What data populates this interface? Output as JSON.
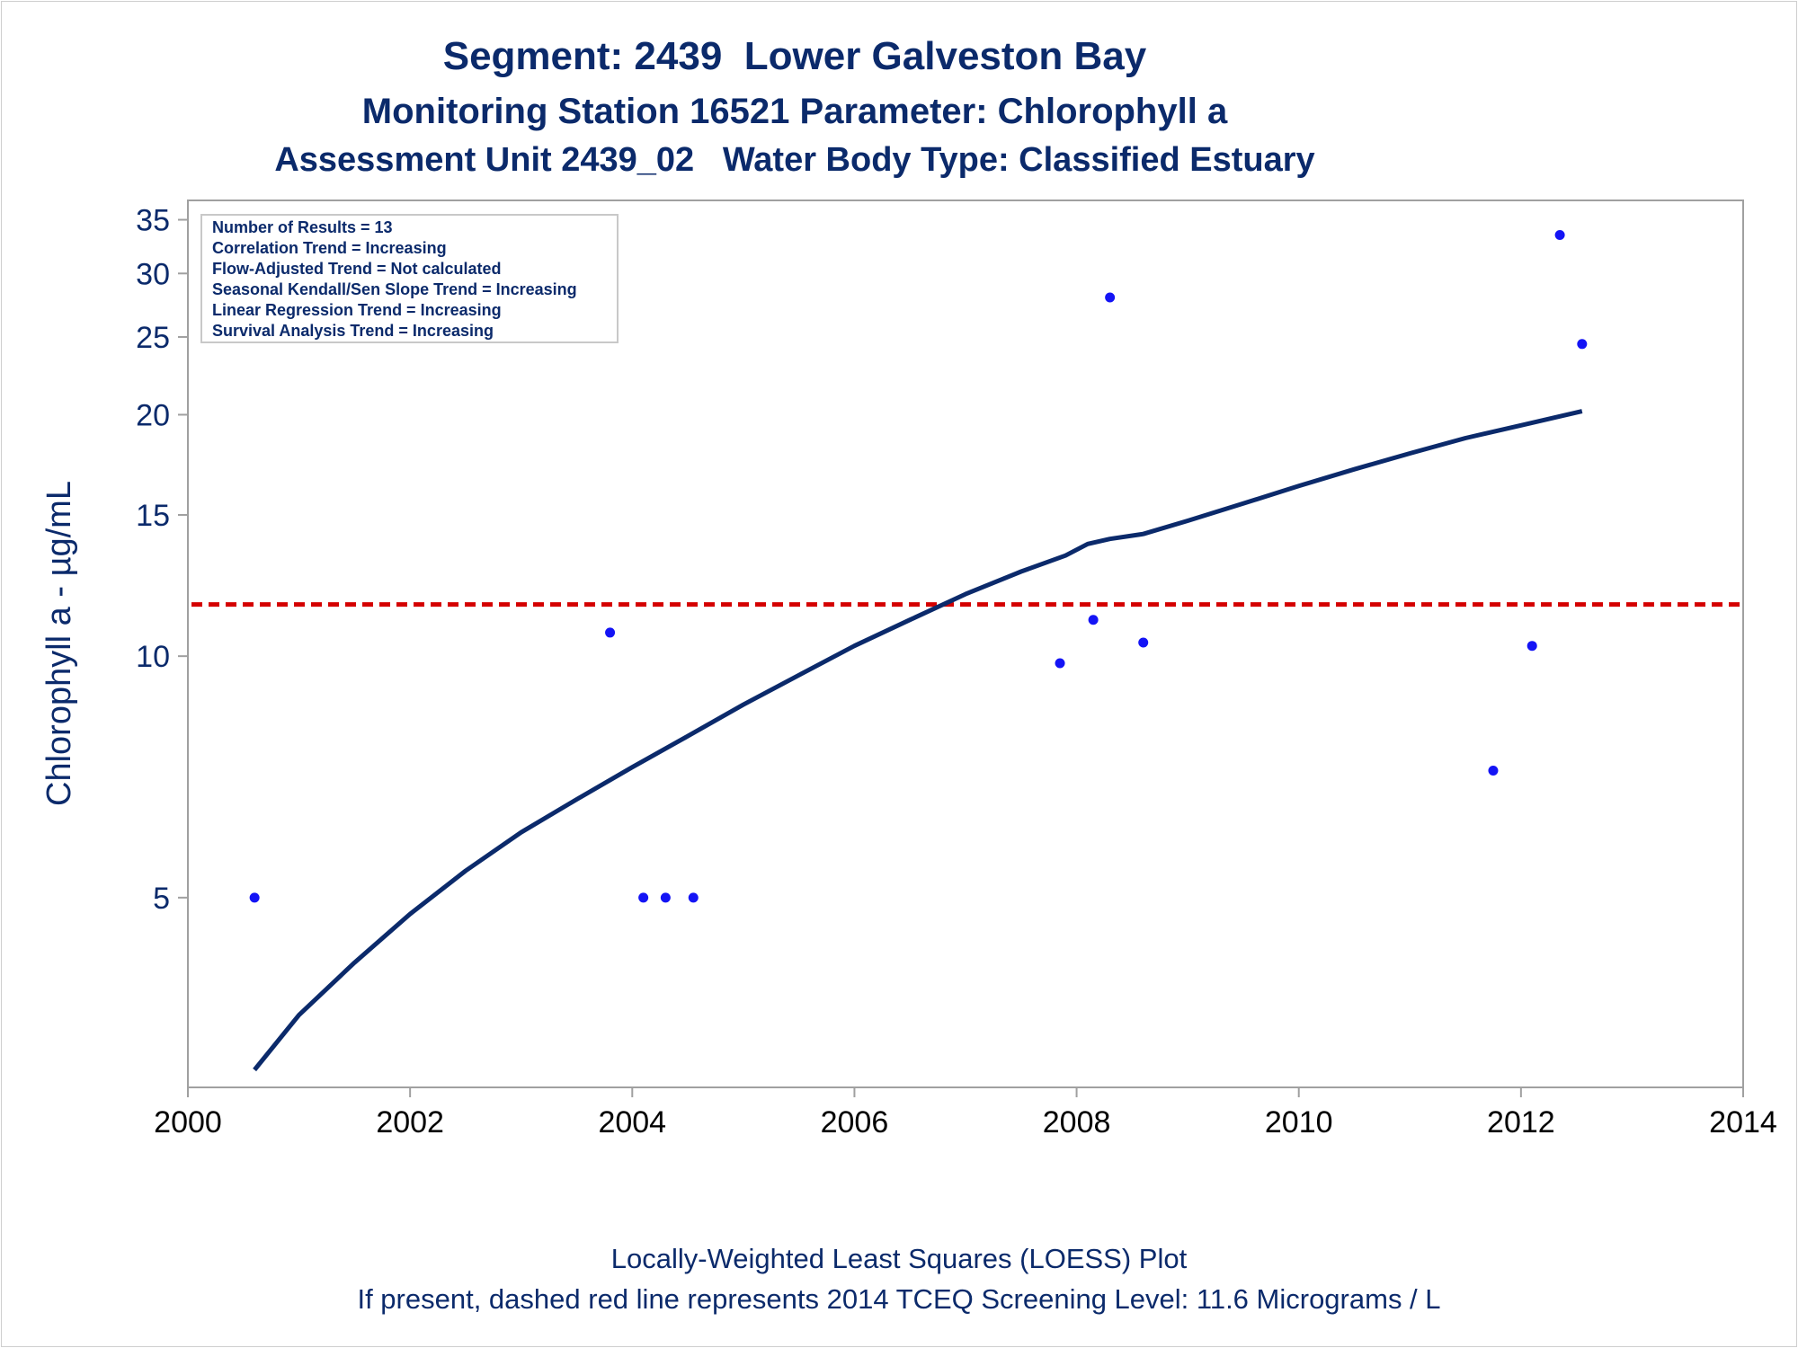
{
  "title": "Segment: 2439  Lower Galveston Bay",
  "subtitle": "Monitoring Station 16521 Parameter: Chlorophyll a",
  "subtitle2": "Assessment Unit 2439_02   Water Body Type: Classified Estuary",
  "footnote1": "Locally-Weighted Least Squares (LOESS) Plot",
  "footnote2": "If present, dashed red line represents 2014 TCEQ Screening Level: 11.6 Micrograms / L",
  "colors": {
    "text": "#0b2a6b",
    "points": "#1414f5",
    "loess": "#0b2a6b",
    "screening": "#d40000",
    "frame": "#a0a0a0"
  },
  "chart_data": {
    "type": "scatter",
    "title": "Segment: 2439  Lower Galveston Bay",
    "xlabel": "",
    "ylabel": "Chlorophyll a -  µg/mL",
    "xlim": [
      2000,
      2014
    ],
    "ylim": [
      2.9,
      37
    ],
    "yscale": "log",
    "grid": false,
    "x_ticks": [
      2000,
      2002,
      2004,
      2006,
      2008,
      2010,
      2012,
      2014
    ],
    "y_ticks": [
      5,
      10,
      15,
      20,
      25,
      30,
      35
    ],
    "legend_box": {
      "placement": "top-left",
      "lines": [
        "Number of Results = 13",
        "Correlation Trend = Increasing",
        "Flow-Adjusted Trend = Not calculated",
        "Seasonal Kendall/Sen Slope Trend = Increasing",
        "Linear Regression Trend = Increasing",
        "Survival Analysis Trend = Increasing"
      ]
    },
    "series": [
      {
        "type": "scatter",
        "x": [
          2000.6,
          2003.8,
          2004.1,
          2004.3,
          2004.55,
          2007.85,
          2008.15,
          2008.3,
          2008.6,
          2011.75,
          2012.1,
          2012.35,
          2012.55
        ],
        "y": [
          5.0,
          10.7,
          5.0,
          5.0,
          5.0,
          9.8,
          11.1,
          28.0,
          10.4,
          7.2,
          10.3,
          33.5,
          24.5
        ]
      },
      {
        "type": "line",
        "x": [
          2000.6,
          2001.0,
          2001.5,
          2002.0,
          2002.5,
          2003.0,
          2003.5,
          2004.0,
          2004.5,
          2005.0,
          2005.5,
          2006.0,
          2006.5,
          2007.0,
          2007.5,
          2007.9,
          2008.1,
          2008.3,
          2008.6,
          2009.0,
          2009.5,
          2010.0,
          2010.5,
          2011.0,
          2011.5,
          2012.0,
          2012.55
        ],
        "y": [
          3.05,
          3.57,
          4.15,
          4.77,
          5.4,
          6.03,
          6.63,
          7.27,
          7.95,
          8.7,
          9.47,
          10.3,
          11.1,
          11.95,
          12.75,
          13.35,
          13.8,
          14.0,
          14.2,
          14.75,
          15.5,
          16.3,
          17.1,
          17.9,
          18.7,
          19.4,
          20.2
        ]
      }
    ],
    "reference_line": {
      "y": 11.6,
      "style": "dashed"
    }
  }
}
